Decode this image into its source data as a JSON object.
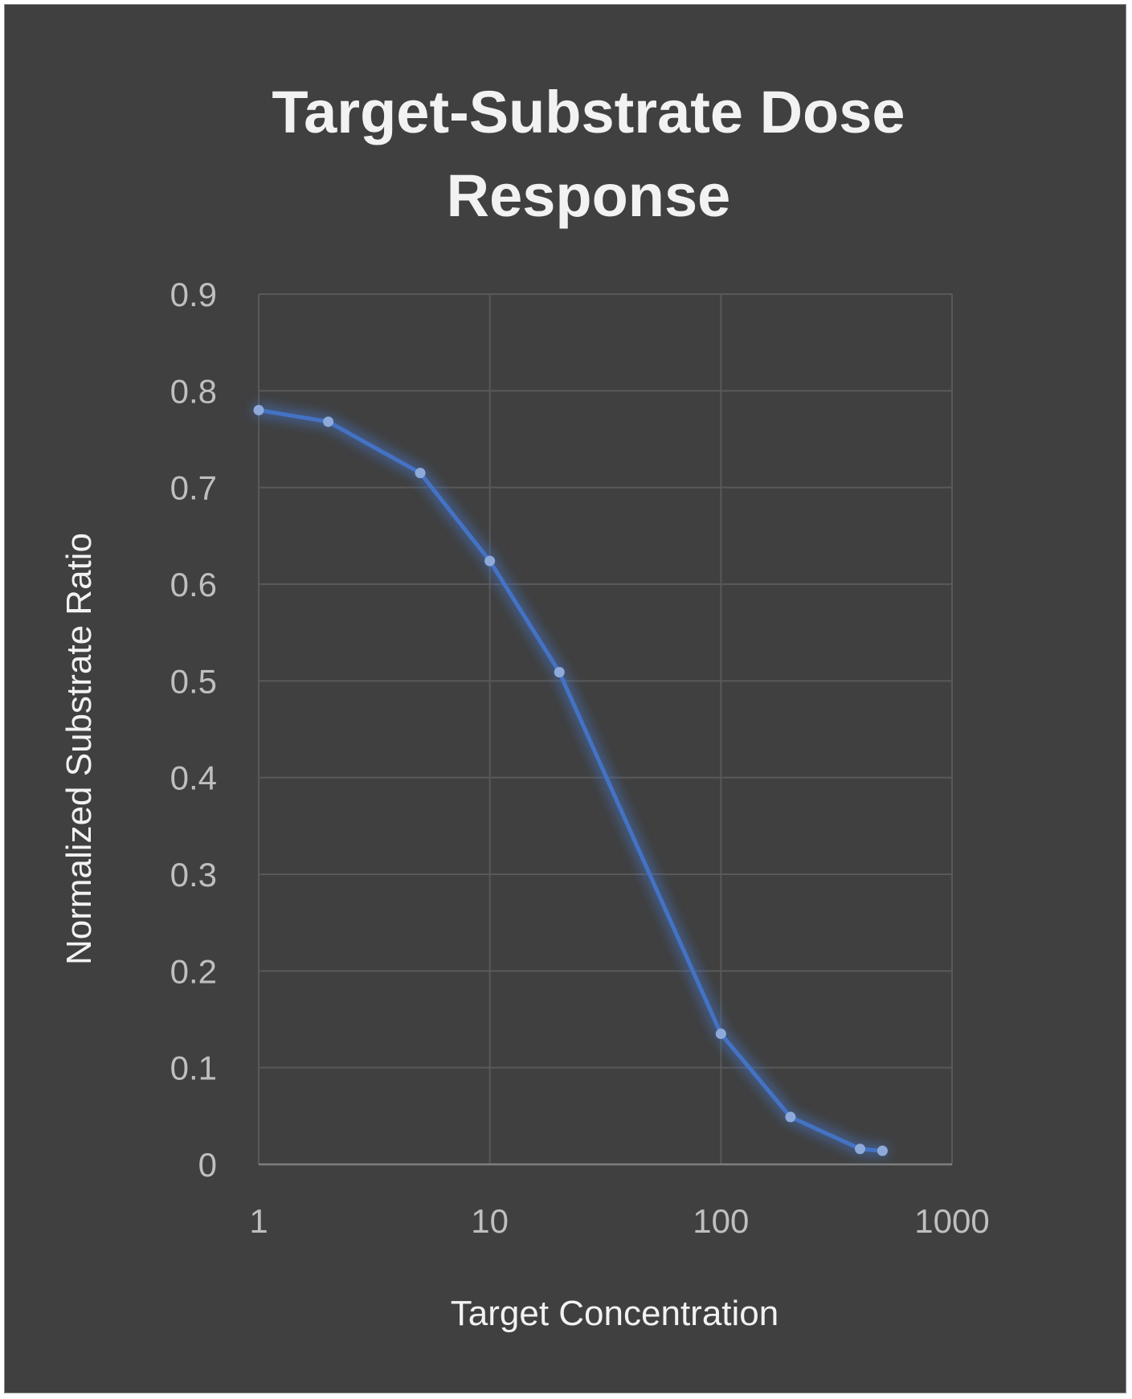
{
  "chart_data": {
    "type": "line",
    "title_lines": [
      "Target-Substrate Dose",
      "Response"
    ],
    "xlabel": "Target Concentration",
    "ylabel": "Normalized Substrate Ratio",
    "x_scale": "log",
    "xlim": [
      1,
      1000
    ],
    "ylim": [
      0,
      0.9
    ],
    "x_ticks": [
      1,
      10,
      100,
      1000
    ],
    "x_tick_labels": [
      "1",
      "10",
      "100",
      "1000"
    ],
    "y_ticks": [
      0,
      0.1,
      0.2,
      0.3,
      0.4,
      0.5,
      0.6,
      0.7,
      0.8,
      0.9
    ],
    "y_tick_labels": [
      "0",
      "0.1",
      "0.2",
      "0.3",
      "0.4",
      "0.5",
      "0.6",
      "0.7",
      "0.8",
      "0.9"
    ],
    "grid": true,
    "legend": "none",
    "series": [
      {
        "x": [
          1,
          2,
          5,
          10,
          20,
          100,
          200,
          400,
          500
        ],
        "y": [
          0.78,
          0.768,
          0.715,
          0.624,
          0.509,
          0.135,
          0.049,
          0.016,
          0.014
        ]
      }
    ],
    "colors": {
      "background": "#404040",
      "line": "#4472c4",
      "marker": "#8eaadb",
      "grid": "#595959",
      "tick_text": "#bfbfbf",
      "title_text": "#f2f2f2"
    }
  }
}
